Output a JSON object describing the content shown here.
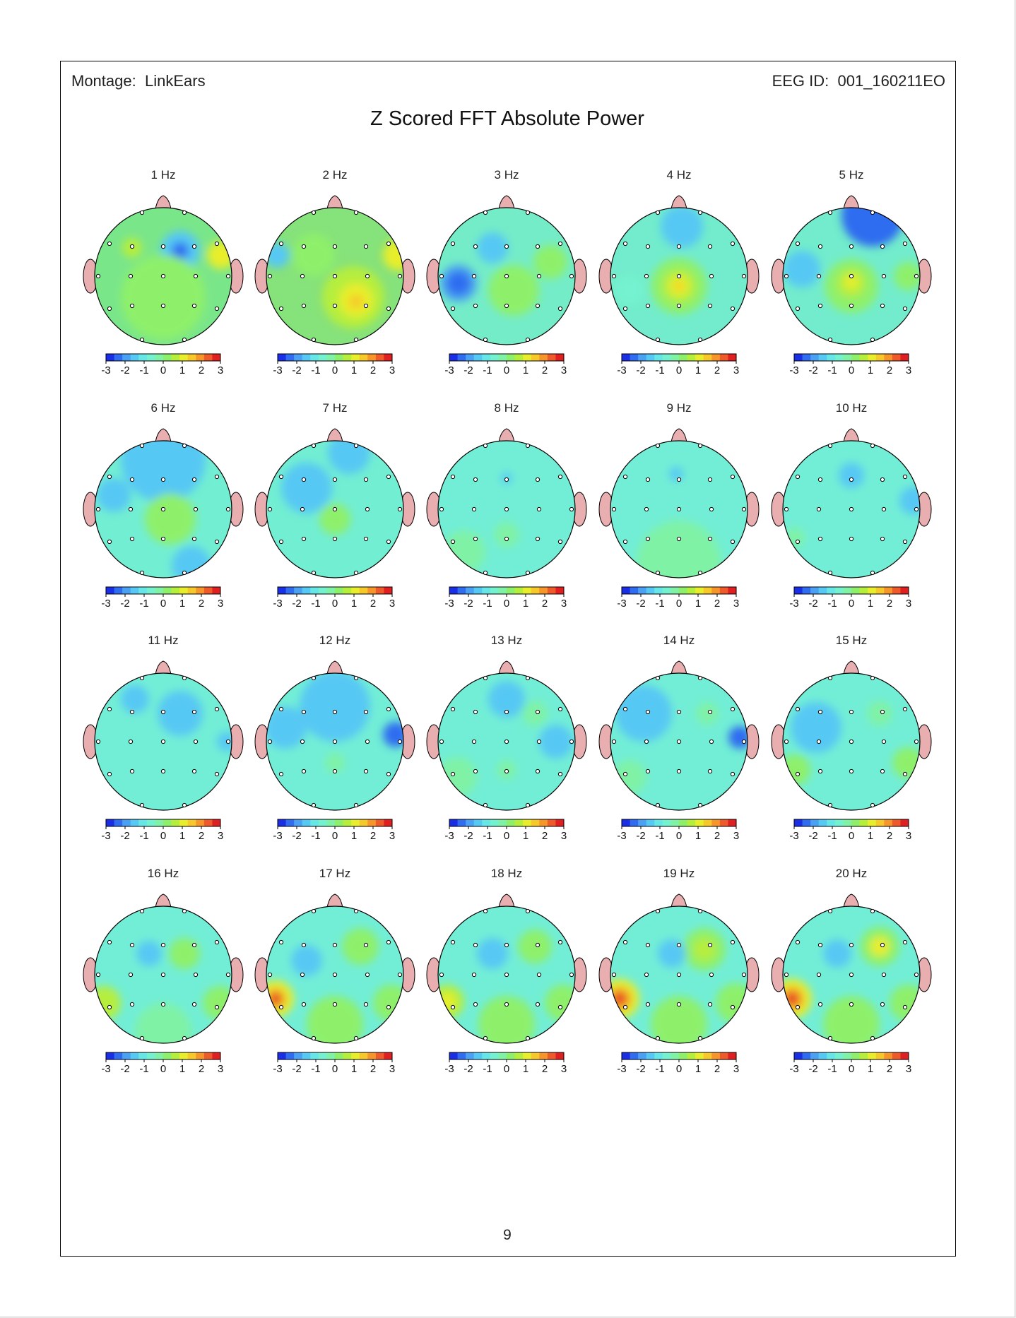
{
  "header": {
    "montage_label": "Montage:",
    "montage_value": "LinkEars",
    "eeg_id_label": "EEG ID:",
    "eeg_id_value": "001_160211EO"
  },
  "title": "Z Scored FFT Absolute Power",
  "colorbar": {
    "ticks": [
      "-3",
      "-2",
      "-1",
      "0",
      "1",
      "2",
      "3"
    ],
    "range": [
      -3,
      3
    ],
    "colors": [
      "#1a2ee6",
      "#2f6cf0",
      "#4aa0f2",
      "#56c8f4",
      "#66e6e6",
      "#74f2cf",
      "#7ff2a6",
      "#8ef06a",
      "#b6ee3c",
      "#e8ee2c",
      "#f6c82a",
      "#f6962a",
      "#ee5a2a",
      "#e02020"
    ]
  },
  "topomaps": [
    {
      "label": "1 Hz",
      "bg": "#7ae68a"
    },
    {
      "label": "2 Hz",
      "bg": "#86e27a"
    },
    {
      "label": "3 Hz",
      "bg": "#74ecc8"
    },
    {
      "label": "4 Hz",
      "bg": "#72eccc"
    },
    {
      "label": "5 Hz",
      "bg": "#72eccc"
    },
    {
      "label": "6 Hz",
      "bg": "#72eed2"
    },
    {
      "label": "7 Hz",
      "bg": "#72eed2"
    },
    {
      "label": "8 Hz",
      "bg": "#72eed6"
    },
    {
      "label": "9 Hz",
      "bg": "#72eed6"
    },
    {
      "label": "10 Hz",
      "bg": "#72eed6"
    },
    {
      "label": "11 Hz",
      "bg": "#72eed6"
    },
    {
      "label": "12 Hz",
      "bg": "#72eed6"
    },
    {
      "label": "13 Hz",
      "bg": "#72eed6"
    },
    {
      "label": "14 Hz",
      "bg": "#72eed6"
    },
    {
      "label": "15 Hz",
      "bg": "#72eed6"
    },
    {
      "label": "16 Hz",
      "bg": "#72eed6"
    },
    {
      "label": "17 Hz",
      "bg": "#72eed6"
    },
    {
      "label": "18 Hz",
      "bg": "#72eed6"
    },
    {
      "label": "19 Hz",
      "bg": "#72eed6"
    },
    {
      "label": "20 Hz",
      "bg": "#72eed6"
    }
  ],
  "page_number": "9"
}
